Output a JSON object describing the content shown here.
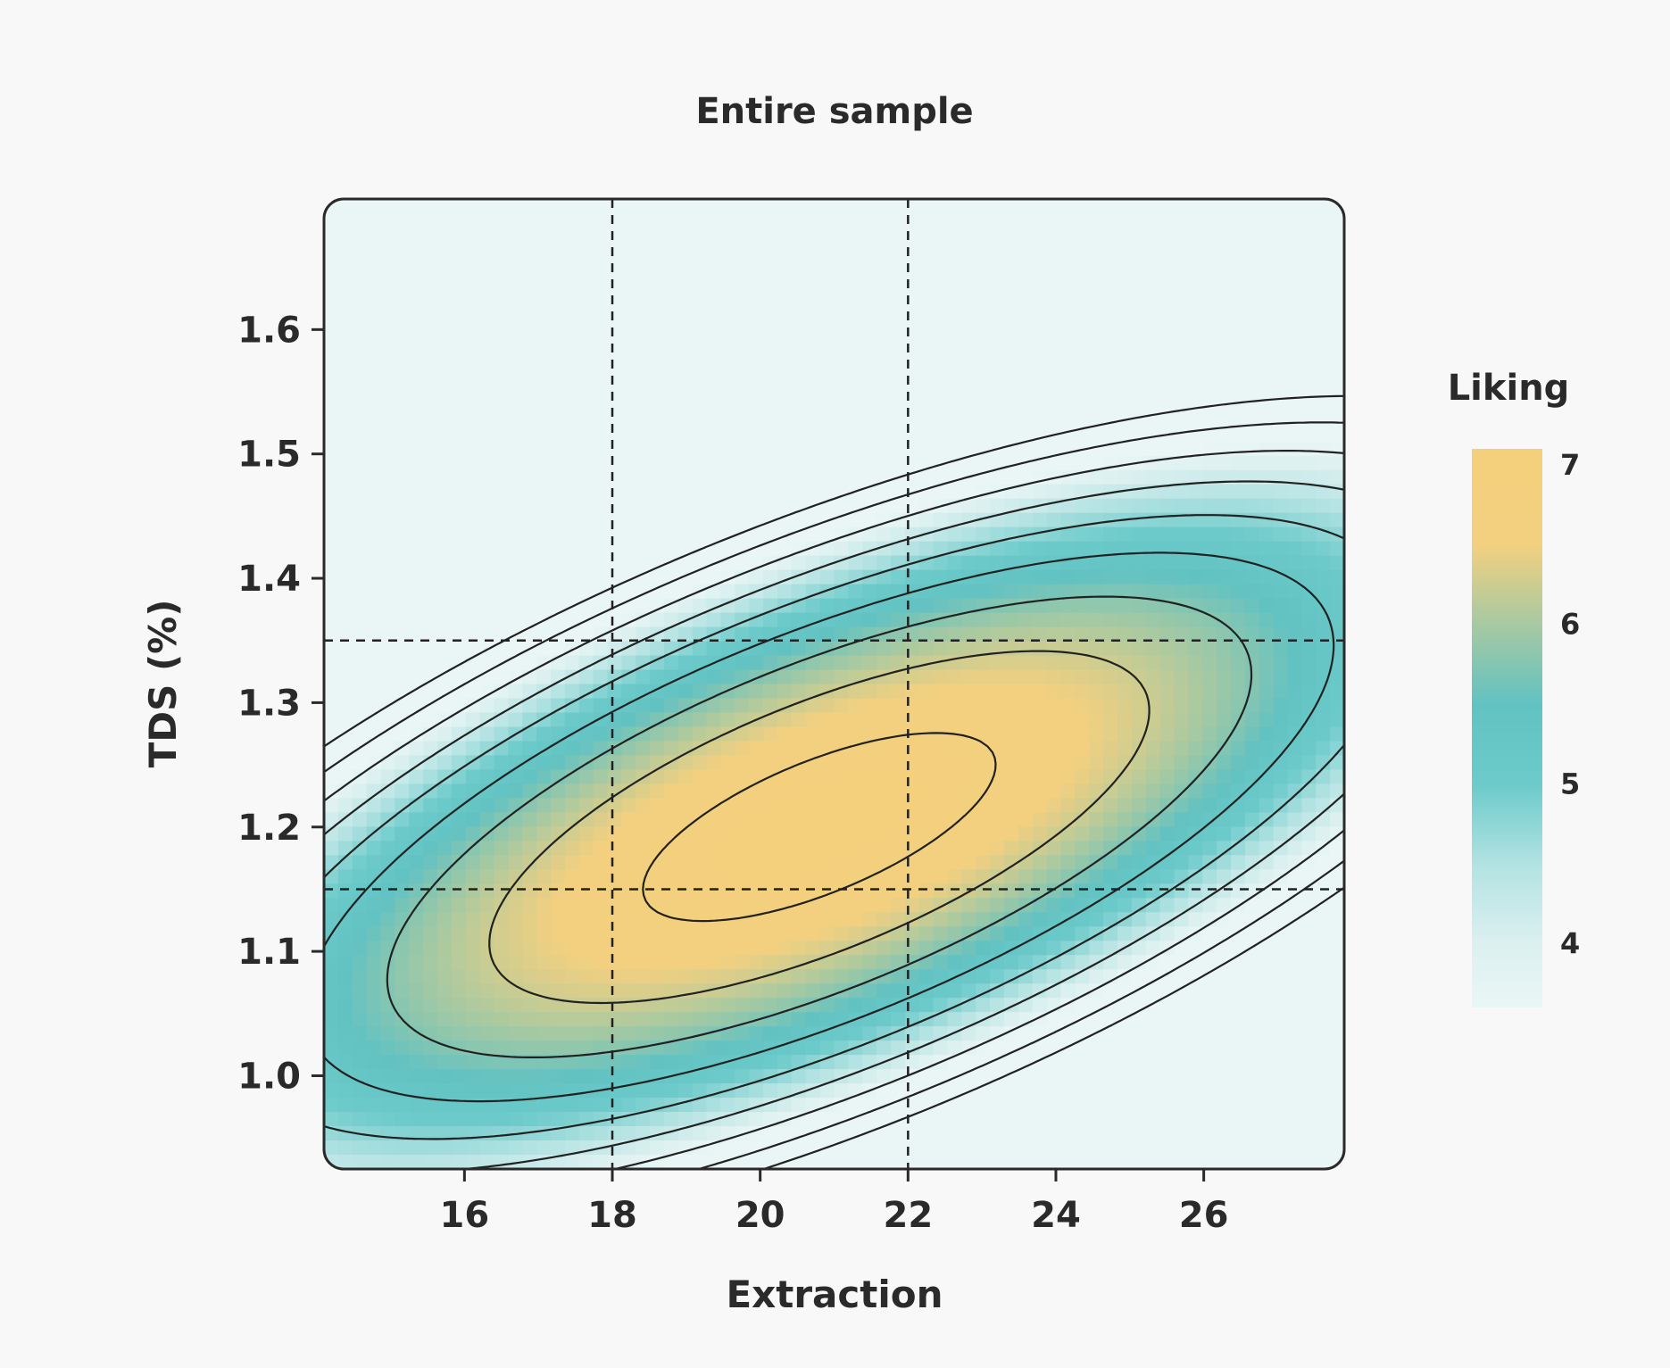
{
  "chart_data": {
    "type": "heatmap",
    "subtype": "contour",
    "title": "Entire sample",
    "xlabel": "Extraction",
    "ylabel": "TDS (%)",
    "xlim": [
      14.1,
      27.9
    ],
    "ylim": [
      0.925,
      1.705
    ],
    "x_ticks": [
      16,
      18,
      20,
      22,
      24,
      26
    ],
    "x_tick_labels": [
      "16",
      "18",
      "20",
      "22",
      "24",
      "26"
    ],
    "y_ticks": [
      1.0,
      1.1,
      1.2,
      1.3,
      1.4,
      1.5,
      1.6
    ],
    "y_tick_labels": [
      "1.0",
      "1.1",
      "1.2",
      "1.3",
      "1.4",
      "1.5",
      "1.6"
    ],
    "reference_lines": {
      "x": [
        18,
        22
      ],
      "y": [
        1.15,
        1.35
      ],
      "style": "dashed"
    },
    "surface": {
      "peak_value": 6.95,
      "peak_x": 20.8,
      "peak_y": 1.2
    },
    "contour_levels": [
      6.75,
      6.25,
      5.75,
      5.25,
      4.75,
      4.25,
      3.75,
      3.25,
      2.75
    ],
    "legend": {
      "title": "Liking",
      "ticks": [
        7,
        6,
        5,
        4
      ],
      "tick_labels": [
        "7",
        "6",
        "5",
        "4"
      ],
      "range": [
        3.6,
        7.1
      ],
      "placement": "right"
    },
    "colormap": [
      {
        "value": 7.1,
        "color": "#f5d07c"
      },
      {
        "value": 6.5,
        "color": "#f2d080"
      },
      {
        "value": 6.0,
        "color": "#a7c9a2"
      },
      {
        "value": 5.5,
        "color": "#62c2c2"
      },
      {
        "value": 5.0,
        "color": "#6ccaca"
      },
      {
        "value": 4.5,
        "color": "#b2e2e2"
      },
      {
        "value": 4.0,
        "color": "#dcf0f0"
      },
      {
        "value": 3.6,
        "color": "#eaf6f6"
      }
    ],
    "grid": false
  }
}
